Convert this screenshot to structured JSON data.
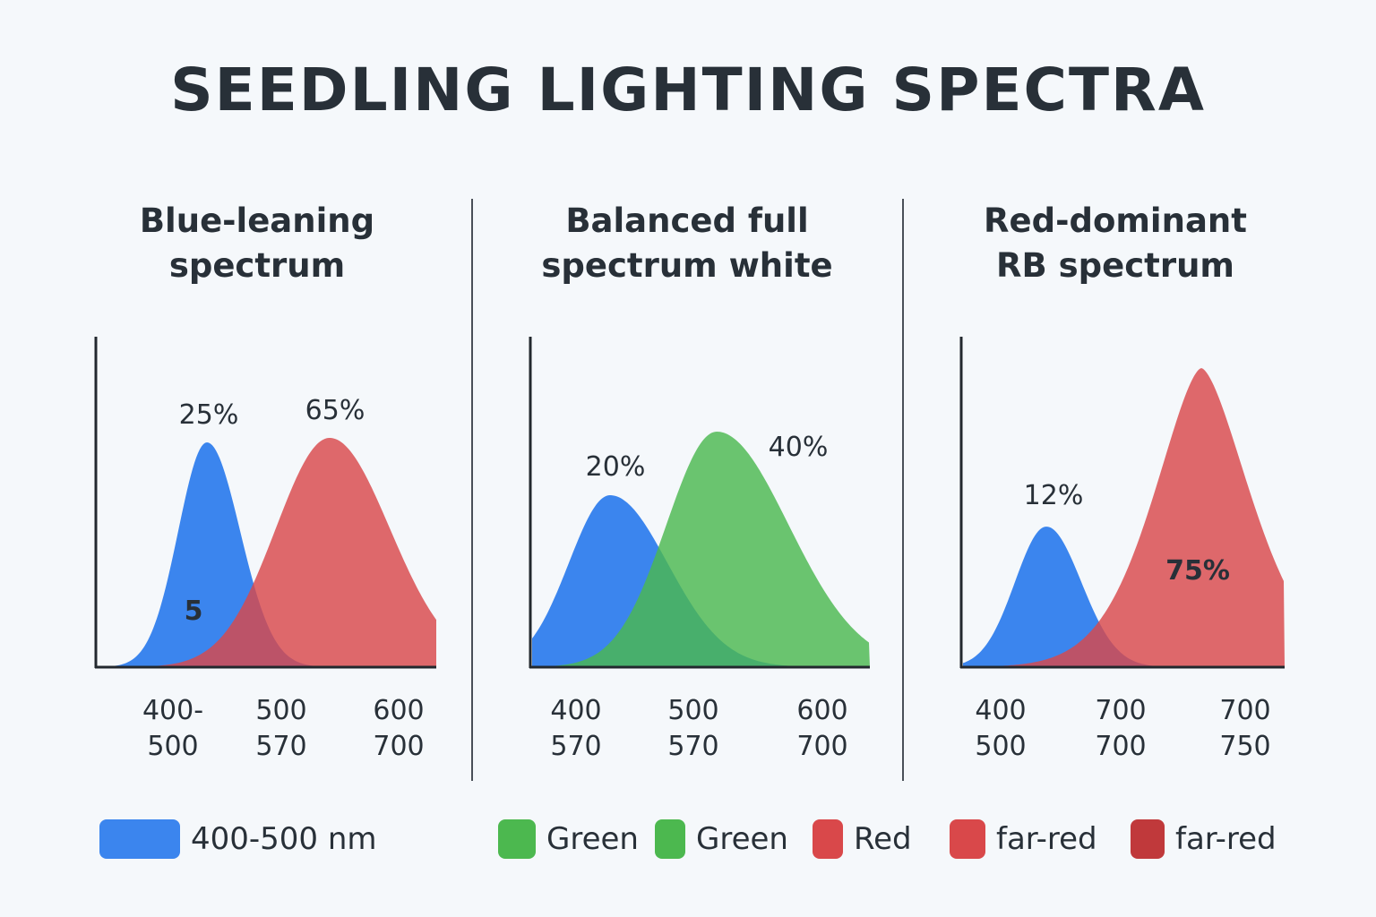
{
  "title": "SEEDLING LIGHTING SPECTRA",
  "colors": {
    "blue": "#3b85ee",
    "red": "#d9484a",
    "green": "#4cb84f",
    "dark_red": "#c0393b",
    "axis": "#22282e",
    "text": "#283038"
  },
  "chart_data": [
    {
      "type": "area",
      "title": [
        "Blue-leaning",
        "spectrum"
      ],
      "x_tick_labels": [
        [
          "400-",
          "500"
        ],
        [
          "500",
          "570"
        ],
        [
          "600",
          "700"
        ]
      ],
      "series": [
        {
          "color": "#3b85ee",
          "peak_label": "25%",
          "inner_label": "5"
        },
        {
          "color": "#d9484a",
          "peak_label": "65%"
        }
      ]
    },
    {
      "type": "area",
      "title": [
        "Balanced full",
        "spectrum white"
      ],
      "x_tick_labels": [
        [
          "400",
          "570"
        ],
        [
          "500",
          "570"
        ],
        [
          "600",
          "700"
        ]
      ],
      "series": [
        {
          "color": "#3b85ee",
          "peak_label": "20%"
        },
        {
          "color": "#4cb84f",
          "peak_label": "40%"
        }
      ]
    },
    {
      "type": "area",
      "title": [
        "Red-dominant",
        "RB spectrum"
      ],
      "x_tick_labels": [
        [
          "400",
          "500"
        ],
        [
          "700",
          "700"
        ],
        [
          "700",
          "750"
        ]
      ],
      "series": [
        {
          "color": "#3b85ee",
          "peak_label": "12%"
        },
        {
          "color": "#d9484a",
          "peak_label": "75%"
        }
      ]
    }
  ],
  "legend": [
    {
      "label": "400-500 nm",
      "color": "#3b85ee"
    },
    {
      "label": "Green",
      "color": "#4cb84f"
    },
    {
      "label": "Green",
      "color": "#4cb84f"
    },
    {
      "label": "Red",
      "color": "#d9484a"
    },
    {
      "label": "far-red",
      "color": "#d9484a"
    },
    {
      "label": "far-red",
      "color": "#c0393b"
    }
  ]
}
